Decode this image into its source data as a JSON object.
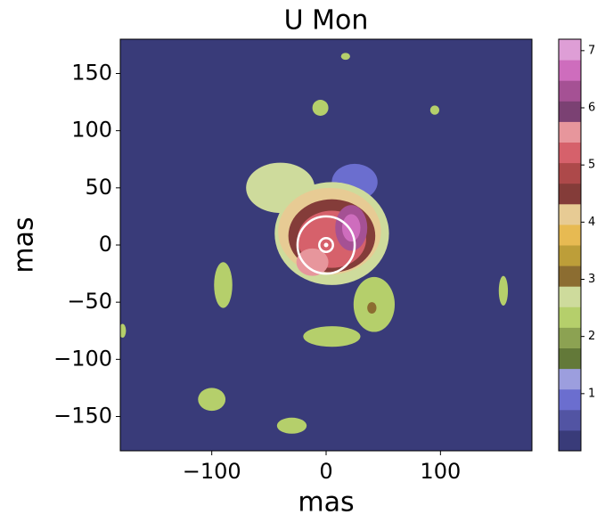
{
  "chart_data": {
    "type": "image",
    "title": "U Mon",
    "xlabel": "mas",
    "ylabel": "mas",
    "xlim": [
      -180,
      180
    ],
    "ylim": [
      -180,
      180
    ],
    "xticks": [
      {
        "value": -100,
        "label": "−100"
      },
      0,
      100
    ],
    "yticks": [
      {
        "value": -150,
        "label": "−150"
      },
      {
        "value": -100,
        "label": "−100"
      },
      {
        "value": -50,
        "label": "−50"
      },
      0,
      50,
      100,
      150
    ],
    "background": 0.1,
    "clim": [
      0,
      7.2
    ],
    "cticks": [
      1,
      2,
      3,
      4,
      5,
      6,
      7
    ],
    "colormap": [
      "#393b79",
      "#5254a3",
      "#6b6ecf",
      "#9c9ede",
      "#637939",
      "#8ca252",
      "#b5cf6b",
      "#cedb9c",
      "#8c6d31",
      "#bd9e39",
      "#e7ba52",
      "#e7cb94",
      "#843c39",
      "#ad494a",
      "#d6616b",
      "#e7969c",
      "#7b4173",
      "#a55194",
      "#ce6dbd",
      "#de9ed6"
    ],
    "regions": [
      {
        "x": 25,
        "y": 55,
        "rx": 20,
        "ry": 16,
        "value": 0.9
      },
      {
        "x": -40,
        "y": 50,
        "rx": 30,
        "ry": 22,
        "value": 2.6
      },
      {
        "x": 5,
        "y": 10,
        "rx": 50,
        "ry": 45,
        "value": 2.6
      },
      {
        "x": 42,
        "y": -52,
        "rx": 18,
        "ry": 24,
        "value": 2.3
      },
      {
        "x": 5,
        "y": -80,
        "rx": 25,
        "ry": 9,
        "value": 2.3
      },
      {
        "x": 3,
        "y": 12,
        "rx": 45,
        "ry": 38,
        "value": 4.1
      },
      {
        "x": 5,
        "y": 8,
        "rx": 38,
        "ry": 32,
        "value": 4.5
      },
      {
        "x": 5,
        "y": 5,
        "rx": 30,
        "ry": 25,
        "value": 5.2
      },
      {
        "x": -12,
        "y": -15,
        "rx": 14,
        "ry": 12,
        "value": 5.6
      },
      {
        "x": 22,
        "y": 15,
        "rx": 14,
        "ry": 20,
        "value": 6.2
      },
      {
        "x": 22,
        "y": 15,
        "rx": 8,
        "ry": 12,
        "value": 6.8
      },
      {
        "x": 40,
        "y": -55,
        "rx": 4,
        "ry": 5,
        "value": 3.0
      },
      {
        "x": -90,
        "y": -35,
        "rx": 8,
        "ry": 20,
        "value": 2.3
      },
      {
        "x": -100,
        "y": -135,
        "rx": 12,
        "ry": 10,
        "value": 2.3
      },
      {
        "x": -30,
        "y": -158,
        "rx": 13,
        "ry": 7,
        "value": 2.3
      },
      {
        "x": -5,
        "y": 120,
        "rx": 7,
        "ry": 7,
        "value": 2.3
      },
      {
        "x": 17,
        "y": 165,
        "rx": 4,
        "ry": 3,
        "value": 2.3
      },
      {
        "x": 95,
        "y": 118,
        "rx": 4,
        "ry": 4,
        "value": 2.3
      },
      {
        "x": 155,
        "y": -40,
        "rx": 4,
        "ry": 13,
        "value": 2.3
      },
      {
        "x": -178,
        "y": -75,
        "rx": 3,
        "ry": 6,
        "value": 2.3
      }
    ],
    "circles": [
      {
        "x": 0,
        "y": 0,
        "r": 25
      },
      {
        "x": 0,
        "y": 0,
        "r": 6
      }
    ]
  }
}
